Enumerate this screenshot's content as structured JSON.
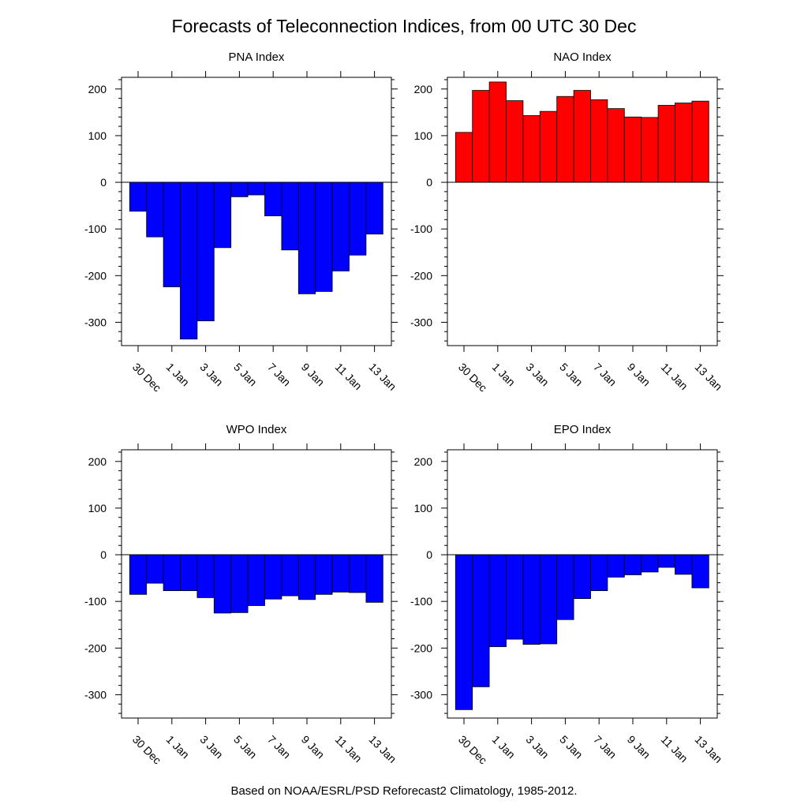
{
  "figure": {
    "title": "Forecasts of Teleconnection Indices, from 00 UTC 30 Dec",
    "footer": "Based on NOAA/ESRL/PSD Reforecast2 Climatology, 1985-2012."
  },
  "chart_data": [
    {
      "type": "bar",
      "title": "PNA Index",
      "categories": [
        "30 Dec",
        "31 Dec",
        "1 Jan",
        "2 Jan",
        "3 Jan",
        "4 Jan",
        "5 Jan",
        "6 Jan",
        "7 Jan",
        "8 Jan",
        "9 Jan",
        "10 Jan",
        "11 Jan",
        "12 Jan",
        "13 Jan"
      ],
      "x_tick_labels": [
        "30 Dec",
        "1 Jan",
        "3 Jan",
        "5 Jan",
        "7 Jan",
        "9 Jan",
        "11 Jan",
        "13 Jan"
      ],
      "values": [
        -62,
        -117,
        -224,
        -336,
        -297,
        -140,
        -31,
        -27,
        -72,
        -145,
        -239,
        -234,
        -190,
        -156,
        -111
      ],
      "ylim": [
        -350,
        225
      ],
      "y_ticks": [
        200,
        100,
        0,
        -100,
        -200,
        -300
      ],
      "colors": {
        "positive": "#ff0000",
        "negative": "#0000ff"
      },
      "xlabel": "",
      "ylabel": ""
    },
    {
      "type": "bar",
      "title": "NAO Index",
      "categories": [
        "30 Dec",
        "31 Dec",
        "1 Jan",
        "2 Jan",
        "3 Jan",
        "4 Jan",
        "5 Jan",
        "6 Jan",
        "7 Jan",
        "8 Jan",
        "9 Jan",
        "10 Jan",
        "11 Jan",
        "12 Jan",
        "13 Jan"
      ],
      "x_tick_labels": [
        "30 Dec",
        "1 Jan",
        "3 Jan",
        "5 Jan",
        "7 Jan",
        "9 Jan",
        "11 Jan",
        "13 Jan"
      ],
      "values": [
        107,
        197,
        215,
        175,
        143,
        152,
        184,
        197,
        177,
        158,
        140,
        139,
        165,
        170,
        174
      ],
      "ylim": [
        -350,
        225
      ],
      "y_ticks": [
        200,
        100,
        0,
        -100,
        -200,
        -300
      ],
      "colors": {
        "positive": "#ff0000",
        "negative": "#0000ff"
      },
      "xlabel": "",
      "ylabel": ""
    },
    {
      "type": "bar",
      "title": "WPO Index",
      "categories": [
        "30 Dec",
        "31 Dec",
        "1 Jan",
        "2 Jan",
        "3 Jan",
        "4 Jan",
        "5 Jan",
        "6 Jan",
        "7 Jan",
        "8 Jan",
        "9 Jan",
        "10 Jan",
        "11 Jan",
        "12 Jan",
        "13 Jan"
      ],
      "x_tick_labels": [
        "30 Dec",
        "1 Jan",
        "3 Jan",
        "5 Jan",
        "7 Jan",
        "9 Jan",
        "11 Jan",
        "13 Jan"
      ],
      "values": [
        -85,
        -61,
        -77,
        -77,
        -92,
        -125,
        -124,
        -109,
        -95,
        -88,
        -96,
        -85,
        -80,
        -81,
        -102
      ],
      "ylim": [
        -350,
        225
      ],
      "y_ticks": [
        200,
        100,
        0,
        -100,
        -200,
        -300
      ],
      "colors": {
        "positive": "#ff0000",
        "negative": "#0000ff"
      },
      "xlabel": "",
      "ylabel": ""
    },
    {
      "type": "bar",
      "title": "EPO Index",
      "categories": [
        "30 Dec",
        "31 Dec",
        "1 Jan",
        "2 Jan",
        "3 Jan",
        "4 Jan",
        "5 Jan",
        "6 Jan",
        "7 Jan",
        "8 Jan",
        "9 Jan",
        "10 Jan",
        "11 Jan",
        "12 Jan",
        "13 Jan"
      ],
      "x_tick_labels": [
        "30 Dec",
        "1 Jan",
        "3 Jan",
        "5 Jan",
        "7 Jan",
        "9 Jan",
        "11 Jan",
        "13 Jan"
      ],
      "values": [
        -332,
        -283,
        -197,
        -181,
        -192,
        -191,
        -139,
        -94,
        -77,
        -48,
        -43,
        -37,
        -27,
        -42,
        -71
      ],
      "ylim": [
        -350,
        225
      ],
      "y_ticks": [
        200,
        100,
        0,
        -100,
        -200,
        -300
      ],
      "colors": {
        "positive": "#ff0000",
        "negative": "#0000ff"
      },
      "xlabel": "",
      "ylabel": ""
    }
  ]
}
